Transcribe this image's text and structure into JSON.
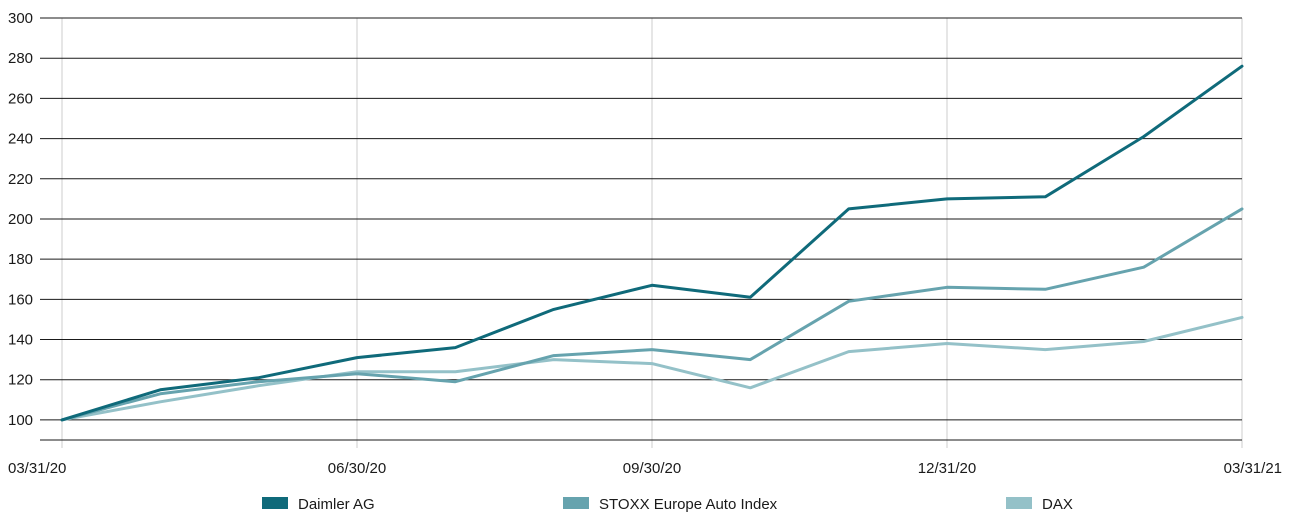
{
  "chart_data": {
    "type": "line",
    "title": "",
    "xlabel": "",
    "ylabel": "",
    "x_ticks": [
      "03/31/20",
      "06/30/20",
      "09/30/20",
      "12/31/20",
      "03/31/21"
    ],
    "y_ticks": [
      100,
      120,
      140,
      160,
      180,
      200,
      220,
      240,
      260,
      280,
      300
    ],
    "ylim": [
      90,
      300
    ],
    "grid": "horizontal and vertical",
    "legend_position": "bottom",
    "x": [
      "03/31/20",
      "04/30/20",
      "05/31/20",
      "06/30/20",
      "07/31/20",
      "08/31/20",
      "09/30/20",
      "10/31/20",
      "11/30/20",
      "12/31/20",
      "01/31/21",
      "02/28/21",
      "03/31/21"
    ],
    "series": [
      {
        "name": "Daimler AG",
        "color": "#0f6a7a",
        "values": [
          100,
          115,
          121,
          131,
          136,
          155,
          167,
          161,
          205,
          210,
          211,
          241,
          276
        ]
      },
      {
        "name": "STOXX Europe Auto Index",
        "color": "#66a3ae",
        "values": [
          100,
          113,
          119,
          123,
          119,
          132,
          135,
          130,
          159,
          166,
          165,
          176,
          205
        ]
      },
      {
        "name": "DAX",
        "color": "#94c1c8",
        "values": [
          100,
          109,
          117,
          124,
          124,
          130,
          128,
          116,
          134,
          138,
          135,
          139,
          151
        ]
      }
    ]
  }
}
